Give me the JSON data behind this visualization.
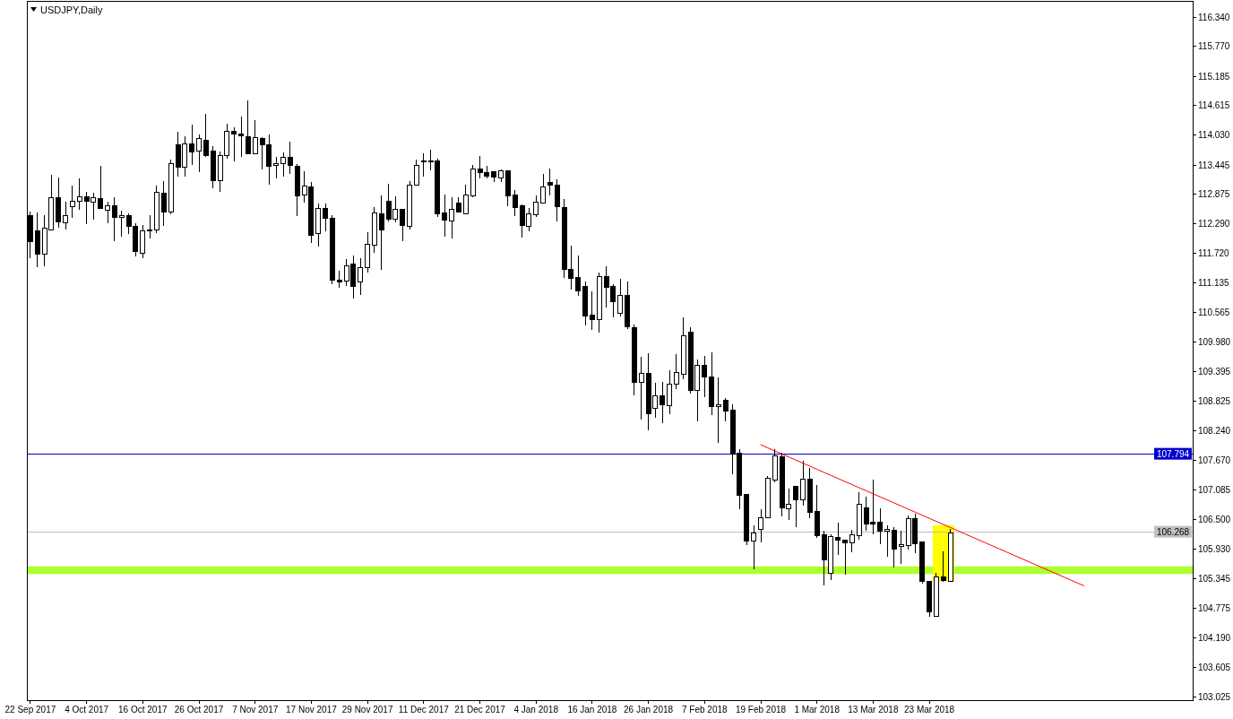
{
  "chart_data": {
    "type": "candlestick",
    "title": "USDJPY,Daily",
    "categories": [
      "22 Sep 2017",
      null,
      null,
      null,
      null,
      null,
      null,
      null,
      "4 Oct 2017",
      null,
      null,
      null,
      null,
      null,
      null,
      null,
      "16 Oct 2017",
      null,
      null,
      null,
      null,
      null,
      null,
      null,
      "26 Oct 2017",
      null,
      null,
      null,
      null,
      null,
      null,
      null,
      "7 Nov 2017",
      null,
      null,
      null,
      null,
      null,
      null,
      null,
      "17 Nov 2017",
      null,
      null,
      null,
      null,
      null,
      null,
      null,
      "29 Nov 2017",
      null,
      null,
      null,
      null,
      null,
      null,
      null,
      "11 Dec 2017",
      null,
      null,
      null,
      null,
      null,
      null,
      null,
      "21 Dec 2017",
      null,
      null,
      null,
      null,
      null,
      null,
      null,
      "4 Jan 2018",
      null,
      null,
      null,
      null,
      null,
      null,
      null,
      "16 Jan 2018",
      null,
      null,
      null,
      null,
      null,
      null,
      null,
      "26 Jan 2018",
      null,
      null,
      null,
      null,
      null,
      null,
      null,
      "7 Feb 2018",
      null,
      null,
      null,
      null,
      null,
      null,
      null,
      "19 Feb 2018",
      null,
      null,
      null,
      null,
      null,
      null,
      null,
      "1 Mar 2018",
      null,
      null,
      null,
      null,
      null,
      null,
      null,
      "13 Mar 2018",
      null,
      null,
      null,
      null,
      null,
      null,
      null,
      "23 Mar 2018",
      null,
      null,
      null,
      null,
      null,
      null,
      null,
      null,
      null,
      null,
      null,
      null,
      null,
      null,
      null,
      null,
      null,
      null,
      null,
      null,
      null,
      null,
      null,
      null,
      null,
      null,
      null,
      null,
      null,
      null,
      null,
      null,
      null,
      null,
      null,
      null,
      null
    ],
    "ohlc": [
      [
        112.46,
        112.53,
        111.63,
        111.95
      ],
      [
        112.15,
        112.52,
        111.45,
        111.7
      ],
      [
        111.7,
        112.46,
        111.47,
        112.21
      ],
      [
        112.18,
        113.25,
        112.17,
        112.81
      ],
      [
        112.81,
        113.2,
        112.22,
        112.33
      ],
      [
        112.32,
        112.73,
        112.19,
        112.46
      ],
      [
        112.63,
        113.04,
        112.42,
        112.74
      ],
      [
        112.74,
        113.18,
        112.57,
        112.83
      ],
      [
        112.83,
        112.92,
        112.29,
        112.74
      ],
      [
        112.72,
        112.9,
        112.38,
        112.8
      ],
      [
        112.79,
        113.43,
        112.58,
        112.6
      ],
      [
        112.56,
        112.72,
        112.31,
        112.65
      ],
      [
        112.65,
        112.81,
        111.96,
        112.42
      ],
      [
        112.42,
        112.56,
        112.05,
        112.46
      ],
      [
        112.46,
        112.5,
        112.1,
        112.24
      ],
      [
        112.25,
        112.3,
        111.66,
        111.75
      ],
      [
        111.72,
        112.27,
        111.63,
        112.16
      ],
      [
        112.18,
        112.46,
        112.01,
        112.16
      ],
      [
        112.18,
        113.04,
        112.12,
        112.91
      ],
      [
        112.9,
        113.13,
        112.26,
        112.53
      ],
      [
        112.53,
        113.55,
        112.49,
        113.48
      ],
      [
        113.85,
        114.1,
        113.22,
        113.4
      ],
      [
        113.4,
        114.01,
        113.22,
        113.86
      ],
      [
        113.86,
        114.23,
        113.45,
        113.71
      ],
      [
        113.72,
        114.05,
        113.31,
        113.97
      ],
      [
        113.93,
        114.44,
        113.61,
        113.64
      ],
      [
        113.72,
        113.81,
        113.0,
        113.14
      ],
      [
        113.14,
        113.72,
        112.93,
        113.64
      ],
      [
        113.63,
        114.26,
        113.57,
        114.11
      ],
      [
        114.11,
        114.19,
        113.52,
        114.05
      ],
      [
        114.05,
        114.4,
        113.61,
        114.02
      ],
      [
        114.0,
        114.72,
        113.67,
        113.67
      ],
      [
        113.67,
        114.32,
        113.67,
        113.98
      ],
      [
        113.97,
        114.0,
        113.36,
        113.84
      ],
      [
        113.84,
        114.05,
        113.07,
        113.43
      ],
      [
        113.44,
        113.61,
        113.19,
        113.48
      ],
      [
        113.48,
        113.7,
        113.22,
        113.6
      ],
      [
        113.6,
        113.9,
        113.27,
        113.44
      ],
      [
        113.43,
        113.47,
        112.45,
        112.84
      ],
      [
        112.86,
        113.32,
        112.71,
        113.04
      ],
      [
        113.01,
        113.12,
        111.92,
        112.07
      ],
      [
        112.1,
        112.7,
        111.85,
        112.6
      ],
      [
        112.6,
        112.7,
        112.15,
        112.4
      ],
      [
        112.4,
        112.47,
        111.12,
        111.19
      ],
      [
        111.19,
        111.38,
        111.05,
        111.15
      ],
      [
        111.17,
        111.6,
        111.07,
        111.47
      ],
      [
        111.51,
        111.67,
        110.83,
        111.07
      ],
      [
        111.16,
        111.62,
        110.91,
        111.44
      ],
      [
        111.44,
        112.13,
        111.35,
        111.9
      ],
      [
        111.88,
        112.62,
        111.72,
        112.51
      ],
      [
        112.49,
        112.86,
        111.4,
        112.17
      ],
      [
        112.74,
        113.08,
        112.35,
        112.38
      ],
      [
        112.38,
        112.84,
        112.33,
        112.58
      ],
      [
        112.58,
        112.58,
        111.96,
        112.26
      ],
      [
        112.25,
        113.14,
        112.19,
        113.05
      ],
      [
        113.05,
        113.56,
        113.05,
        113.44
      ],
      [
        113.53,
        113.67,
        113.22,
        113.51
      ],
      [
        113.52,
        113.75,
        113.35,
        113.53
      ],
      [
        113.53,
        113.57,
        112.43,
        112.5
      ],
      [
        112.51,
        112.87,
        112.05,
        112.36
      ],
      [
        112.35,
        112.81,
        112.01,
        112.58
      ],
      [
        112.71,
        112.81,
        112.51,
        112.53
      ],
      [
        112.5,
        113.06,
        112.48,
        112.86
      ],
      [
        112.85,
        113.44,
        112.82,
        113.37
      ],
      [
        113.37,
        113.62,
        113.18,
        113.3
      ],
      [
        113.3,
        113.43,
        113.18,
        113.22
      ],
      [
        113.32,
        113.32,
        113.11,
        113.21
      ],
      [
        113.19,
        113.36,
        113.12,
        113.33
      ],
      [
        113.33,
        113.33,
        112.64,
        112.84
      ],
      [
        112.86,
        112.95,
        112.45,
        112.61
      ],
      [
        112.65,
        112.67,
        112.03,
        112.26
      ],
      [
        112.24,
        112.6,
        112.15,
        112.49
      ],
      [
        112.47,
        112.85,
        112.43,
        112.72
      ],
      [
        112.7,
        113.28,
        112.7,
        113.02
      ],
      [
        113.11,
        113.37,
        112.85,
        113.06
      ],
      [
        113.06,
        113.16,
        112.35,
        112.63
      ],
      [
        112.62,
        112.78,
        111.24,
        111.4
      ],
      [
        111.41,
        111.87,
        111.01,
        111.22
      ],
      [
        111.24,
        111.67,
        110.89,
        110.98
      ],
      [
        111.07,
        111.16,
        110.31,
        110.49
      ],
      [
        110.5,
        110.97,
        110.22,
        110.42
      ],
      [
        110.42,
        111.34,
        110.17,
        111.26
      ],
      [
        111.26,
        111.46,
        110.66,
        111.06
      ],
      [
        111.07,
        111.11,
        110.47,
        110.78
      ],
      [
        110.54,
        111.22,
        110.49,
        110.89
      ],
      [
        110.89,
        111.16,
        110.23,
        110.28
      ],
      [
        110.27,
        110.32,
        108.94,
        109.19
      ],
      [
        109.19,
        109.69,
        108.47,
        109.37
      ],
      [
        109.37,
        109.76,
        108.26,
        108.57
      ],
      [
        108.68,
        109.18,
        108.49,
        108.93
      ],
      [
        108.93,
        109.2,
        108.39,
        108.75
      ],
      [
        108.74,
        109.43,
        108.57,
        109.16
      ],
      [
        109.16,
        109.74,
        109.06,
        109.39
      ],
      [
        109.35,
        110.46,
        109.26,
        110.11
      ],
      [
        110.18,
        110.27,
        108.97,
        109.03
      ],
      [
        109.03,
        109.64,
        108.43,
        109.53
      ],
      [
        109.53,
        109.71,
        108.9,
        109.3
      ],
      [
        109.29,
        109.78,
        108.56,
        108.71
      ],
      [
        108.72,
        109.29,
        108.01,
        108.75
      ],
      [
        108.84,
        108.88,
        108.42,
        108.63
      ],
      [
        108.64,
        108.76,
        107.39,
        107.78
      ],
      [
        107.8,
        107.88,
        106.7,
        106.98
      ],
      [
        106.99,
        106.99,
        106.01,
        106.09
      ],
      [
        106.09,
        106.39,
        105.53,
        106.25
      ],
      [
        106.32,
        106.7,
        106.06,
        106.54
      ],
      [
        106.55,
        107.36,
        106.53,
        107.32
      ],
      [
        107.28,
        107.88,
        107.24,
        107.76
      ],
      [
        107.74,
        107.81,
        106.57,
        106.73
      ],
      [
        106.71,
        107.11,
        106.49,
        106.81
      ],
      [
        107.15,
        107.15,
        106.35,
        106.89
      ],
      [
        106.9,
        107.66,
        106.77,
        107.3
      ],
      [
        107.3,
        107.52,
        106.54,
        106.64
      ],
      [
        106.66,
        107.18,
        106.14,
        106.19
      ],
      [
        106.2,
        106.28,
        105.22,
        105.71
      ],
      [
        105.46,
        106.22,
        105.33,
        106.18
      ],
      [
        106.16,
        106.44,
        105.82,
        106.1
      ],
      [
        106.11,
        106.11,
        105.43,
        106.05
      ],
      [
        106.05,
        106.3,
        105.87,
        106.2
      ],
      [
        106.19,
        107.04,
        106.12,
        106.8
      ],
      [
        106.74,
        106.95,
        106.29,
        106.42
      ],
      [
        106.45,
        107.29,
        106.22,
        106.42
      ],
      [
        106.45,
        106.73,
        106.03,
        106.28
      ],
      [
        106.28,
        106.39,
        105.77,
        106.32
      ],
      [
        106.3,
        106.36,
        105.57,
        105.92
      ],
      [
        105.98,
        106.29,
        105.64,
        106.02
      ],
      [
        106.0,
        106.59,
        105.91,
        106.52
      ],
      [
        106.52,
        106.62,
        105.85,
        106.03
      ],
      [
        106.06,
        106.06,
        105.25,
        105.29
      ],
      [
        105.3,
        105.3,
        104.61,
        104.7
      ],
      [
        104.61,
        105.46,
        104.61,
        105.39
      ],
      [
        105.38,
        105.88,
        105.29,
        105.32
      ],
      [
        105.29,
        106.32,
        105.29,
        106.25
      ],
      null,
      null,
      null,
      null,
      null,
      null,
      null,
      null,
      null,
      null,
      null,
      null,
      null,
      null,
      null,
      null,
      null,
      null,
      null,
      null,
      null,
      null,
      null,
      null,
      null,
      null,
      null,
      null,
      null,
      null,
      null,
      null,
      null,
      null
    ],
    "series": [
      {
        "type": "bar",
        "color": "#ffff00",
        "base": [
          null,
          null,
          null,
          null,
          null,
          null,
          null,
          null,
          null,
          null,
          null,
          null,
          null,
          null,
          null,
          null,
          null,
          null,
          null,
          null,
          null,
          null,
          null,
          null,
          null,
          null,
          null,
          null,
          null,
          null,
          null,
          null,
          null,
          null,
          null,
          null,
          null,
          null,
          null,
          null,
          null,
          null,
          null,
          null,
          null,
          null,
          null,
          null,
          null,
          null,
          null,
          null,
          null,
          null,
          null,
          null,
          null,
          null,
          null,
          null,
          null,
          null,
          null,
          null,
          null,
          null,
          null,
          null,
          null,
          null,
          null,
          null,
          null,
          null,
          null,
          null,
          null,
          null,
          null,
          null,
          null,
          null,
          null,
          null,
          null,
          null,
          null,
          null,
          null,
          null,
          null,
          null,
          null,
          null,
          null,
          null,
          null,
          null,
          null,
          null,
          null,
          null,
          null,
          null,
          null,
          null,
          null,
          null,
          null,
          null,
          null,
          null,
          null,
          null,
          null,
          null,
          null,
          null,
          null,
          null,
          null,
          null,
          null,
          null,
          null,
          null,
          null,
          null,
          null,
          105.31,
          105.31,
          105.31,
          null,
          null,
          null,
          null,
          null,
          null,
          null,
          null,
          null,
          null,
          null,
          null,
          null,
          null,
          null,
          null,
          null,
          null,
          null,
          null,
          null,
          null,
          null,
          null,
          null,
          null,
          null,
          null,
          null,
          null,
          null,
          null,
          null,
          null
        ],
        "values": [
          null,
          null,
          null,
          null,
          null,
          null,
          null,
          null,
          null,
          null,
          null,
          null,
          null,
          null,
          null,
          null,
          null,
          null,
          null,
          null,
          null,
          null,
          null,
          null,
          null,
          null,
          null,
          null,
          null,
          null,
          null,
          null,
          null,
          null,
          null,
          null,
          null,
          null,
          null,
          null,
          null,
          null,
          null,
          null,
          null,
          null,
          null,
          null,
          null,
          null,
          null,
          null,
          null,
          null,
          null,
          null,
          null,
          null,
          null,
          null,
          null,
          null,
          null,
          null,
          null,
          null,
          null,
          null,
          null,
          null,
          null,
          null,
          null,
          null,
          null,
          null,
          null,
          null,
          null,
          null,
          null,
          null,
          null,
          null,
          null,
          null,
          null,
          null,
          null,
          null,
          null,
          null,
          null,
          null,
          null,
          null,
          null,
          null,
          null,
          null,
          null,
          null,
          null,
          null,
          null,
          null,
          null,
          null,
          null,
          null,
          null,
          null,
          null,
          null,
          null,
          null,
          null,
          null,
          null,
          null,
          null,
          null,
          null,
          null,
          null,
          null,
          null,
          null,
          null,
          1.08,
          1.08,
          1.08,
          null,
          null,
          null,
          null,
          null,
          null,
          null,
          null,
          null,
          null,
          null,
          null,
          null,
          null,
          null,
          null,
          null,
          null,
          null,
          null,
          null,
          null,
          null,
          null,
          null,
          null,
          null,
          null,
          null,
          null,
          null,
          null,
          null,
          null
        ]
      },
      {
        "type": "line",
        "color": "#ff0000",
        "values": [
          null,
          null,
          null,
          null,
          null,
          null,
          null,
          null,
          null,
          null,
          null,
          null,
          null,
          null,
          null,
          null,
          null,
          null,
          null,
          null,
          null,
          null,
          null,
          null,
          null,
          null,
          null,
          null,
          null,
          null,
          null,
          null,
          null,
          null,
          null,
          null,
          null,
          null,
          null,
          null,
          null,
          null,
          null,
          null,
          null,
          null,
          null,
          null,
          null,
          null,
          null,
          null,
          null,
          null,
          null,
          null,
          null,
          null,
          null,
          null,
          null,
          null,
          null,
          null,
          null,
          null,
          null,
          null,
          null,
          null,
          null,
          null,
          null,
          null,
          null,
          null,
          null,
          null,
          null,
          null,
          null,
          null,
          null,
          null,
          null,
          null,
          null,
          null,
          null,
          null,
          null,
          null,
          null,
          null,
          null,
          null,
          null,
          null,
          null,
          null,
          null,
          null,
          null,
          null,
          107.97,
          107.91,
          107.85,
          107.79,
          107.73,
          107.67,
          107.61,
          107.55,
          107.49,
          107.43,
          107.37,
          107.31,
          107.25,
          107.19,
          107.13,
          107.07,
          107.01,
          106.95,
          106.89,
          106.83,
          106.77,
          106.71,
          106.65,
          106.59,
          106.53,
          106.47,
          106.41,
          106.35,
          106.29,
          106.23,
          106.17,
          106.11,
          106.05,
          105.99,
          105.93,
          105.87,
          105.81,
          105.75,
          105.69,
          105.63,
          105.57,
          105.51,
          105.45,
          105.39,
          105.33,
          105.27,
          105.21,
          null,
          null,
          null,
          null,
          null,
          null,
          null,
          null,
          null,
          null,
          null,
          null,
          null,
          null,
          null
        ]
      }
    ],
    "ylim": [
      102.97,
      116.66
    ],
    "yticks": [
      103.025,
      103.605,
      {
        "value": 104.19,
        "label": "104.190"
      },
      104.775,
      105.345,
      {
        "value": 105.93,
        "label": "105.930"
      },
      {
        "value": 106.5,
        "label": "106.500"
      },
      107.085,
      {
        "value": 107.67,
        "label": "107.670"
      },
      {
        "value": 108.24,
        "label": "108.240"
      },
      108.825,
      109.395,
      {
        "value": 109.98,
        "label": "109.980"
      },
      110.565,
      111.135,
      {
        "value": 111.72,
        "label": "111.720"
      },
      {
        "value": 112.29,
        "label": "112.290"
      },
      112.875,
      113.445,
      {
        "value": 114.03,
        "label": "114.030"
      },
      114.615,
      115.185,
      {
        "value": 115.77,
        "label": "115.770"
      },
      {
        "value": 116.34,
        "label": "116.340"
      }
    ],
    "ref_lines": [
      {
        "axis": "y",
        "value": 107.794,
        "label": "107.794",
        "color": "#0000cd"
      },
      {
        "axis": "y",
        "value": 106.268,
        "label": "106.268",
        "color": "#c0c0c0"
      }
    ],
    "bands": [
      {
        "axis": "y",
        "from": 105.44,
        "to": 105.59,
        "color": "#adff2f"
      }
    ]
  }
}
